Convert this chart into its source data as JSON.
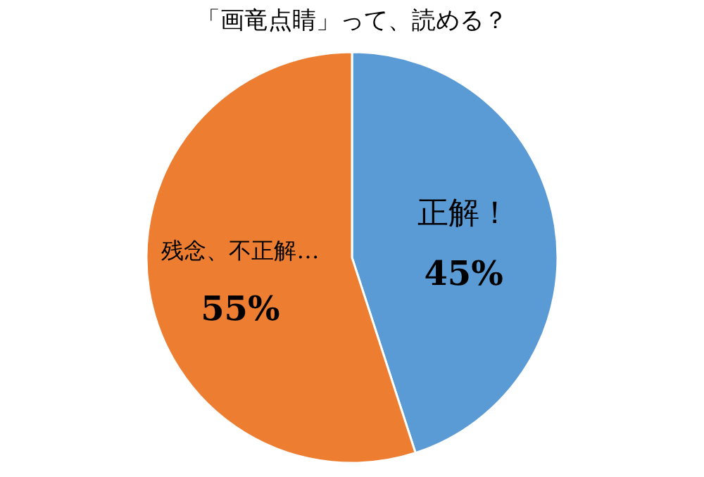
{
  "chart_data": {
    "type": "pie",
    "title": "「画竜点睛」って、読める？",
    "categories": [
      "正解！",
      "残念、不正解…"
    ],
    "values": [
      45,
      55
    ],
    "value_labels": [
      "45%",
      "55%"
    ],
    "colors": [
      "#5b9bd5",
      "#ed7d31"
    ]
  }
}
